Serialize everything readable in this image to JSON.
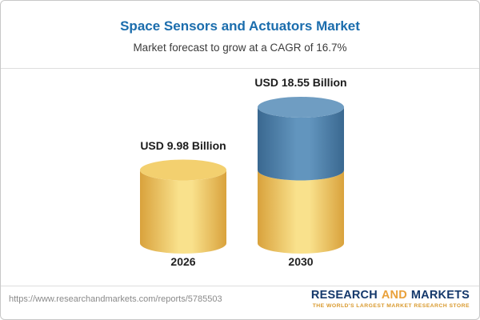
{
  "chart_data": {
    "type": "bar",
    "style": "3d-cylinder",
    "title": "Space Sensors and Actuators Market",
    "subtitle": "Market forecast to grow at a CAGR of 16.7%",
    "categories": [
      "2026",
      "2030"
    ],
    "values": [
      9.98,
      18.55
    ],
    "data_labels": [
      "USD 9.98 Billion",
      "USD 18.55 Billion"
    ],
    "unit": "USD Billion",
    "cagr_percent": 16.7,
    "legend": "none",
    "axes": "none",
    "segments": [
      [
        {
          "value": 9.98,
          "color": "gold"
        }
      ],
      [
        {
          "value": 9.98,
          "color": "gold"
        },
        {
          "value": 8.57,
          "color": "blue"
        }
      ]
    ]
  },
  "footer": {
    "url": "https://www.researchandmarkets.com/reports/5785503",
    "logo": {
      "parts": [
        "RESEARCH",
        "AND",
        "MARKETS"
      ],
      "tagline": "THE WORLD'S LARGEST MARKET RESEARCH STORE"
    }
  },
  "colors": {
    "title_blue": "#1b6dad",
    "gold_edge": "#d9a23c",
    "gold_mid": "#f9e18c",
    "gold_cap": "#f3d06f",
    "blue_edge": "#3a6890",
    "blue_mid": "#6295be",
    "blue_cap": "#6f9dc2",
    "logo_navy": "#14386b",
    "logo_gold": "#e9a13b",
    "tagline_gold": "#d9992c"
  }
}
